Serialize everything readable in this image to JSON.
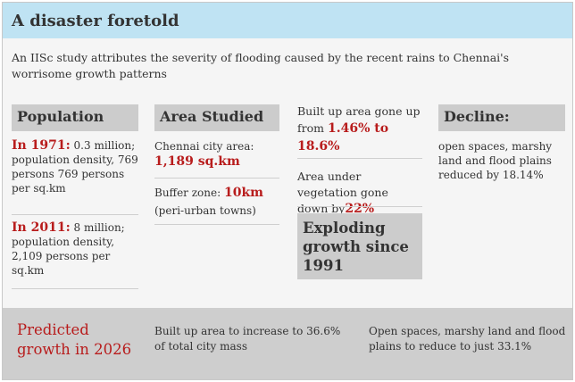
{
  "title": "A disaster foretold",
  "subtitle": "An IISc study attributes the severity of flooding caused by the recent rains to Chennai's worrisome growth patterns",
  "population": {
    "header": "Population",
    "y1971_label": "In 1971:",
    "y1971_text": " 0.3 million; population density, 769 persons 769 persons per sq.km",
    "y2011_label": "In 2011:",
    "y2011_text": " 8 million; population density, 2,109 persons per sq.km"
  },
  "area": {
    "header": "Area Studied",
    "city_label": "Chennai city area:",
    "city_value": "1,189 sq.km",
    "buffer_label": "Buffer zone: ",
    "buffer_value": "10km",
    "buffer_note": "(peri-urban towns)"
  },
  "growth": {
    "built_text": "Built up area gone up from ",
    "built_value": "1.46% to 18.6%",
    "veg_text": "Area under vegetation gone down by",
    "veg_value": "22%",
    "header": "Exploding growth since 1991"
  },
  "decline": {
    "header": "Decline:",
    "text": "open spaces, marshy land and flood plains reduced by 18.14%"
  },
  "prediction": {
    "label": "Predicted growth in 2026",
    "built_up": "Built up area to increase to 36.6% of total city mass",
    "open_spaces": "Open spaces, marshy land and flood plains to reduce to just 33.1%"
  }
}
